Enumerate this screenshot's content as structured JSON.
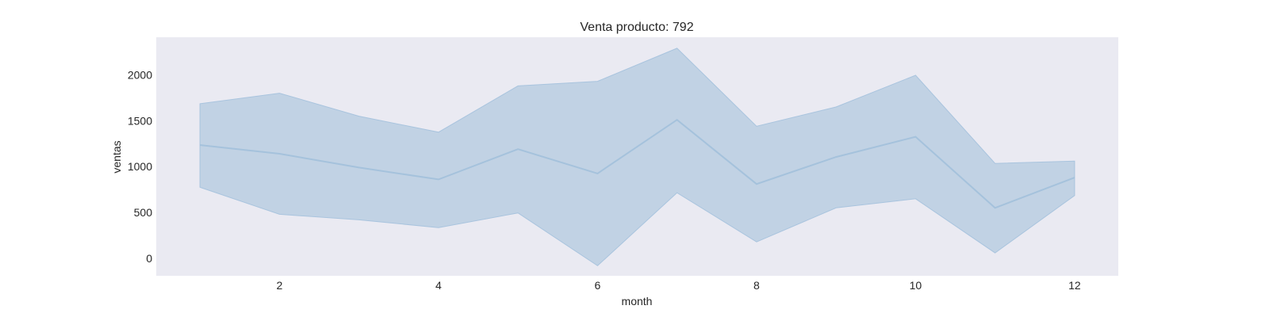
{
  "chart_data": {
    "type": "line",
    "title": "Venta producto: 792",
    "xlabel": "month",
    "ylabel": "ventas",
    "xlim": [
      0.45,
      12.55
    ],
    "ylim": [
      -190,
      2410
    ],
    "xticks": [
      2,
      4,
      6,
      8,
      10,
      12
    ],
    "yticks": [
      0,
      500,
      1000,
      1500,
      2000
    ],
    "grid": false,
    "legend": "none",
    "series": [
      {
        "x": [
          1,
          2,
          3,
          4,
          5,
          6,
          7,
          8,
          9,
          10,
          11,
          12
        ],
        "values": [
          1235,
          1140,
          990,
          860,
          1190,
          925,
          1510,
          810,
          1105,
          1325,
          550,
          880
        ],
        "ci_lower": [
          775,
          480,
          420,
          335,
          495,
          -80,
          715,
          180,
          550,
          650,
          60,
          685
        ],
        "ci_upper": [
          1685,
          1800,
          1550,
          1375,
          1880,
          1930,
          2290,
          1440,
          1650,
          1995,
          1035,
          1060
        ]
      }
    ],
    "colors": {
      "line": "#a5c2dc",
      "band": "#c1d2e4",
      "band_edge": "#a9c4de",
      "plot_background": "#eaeaf2"
    }
  }
}
